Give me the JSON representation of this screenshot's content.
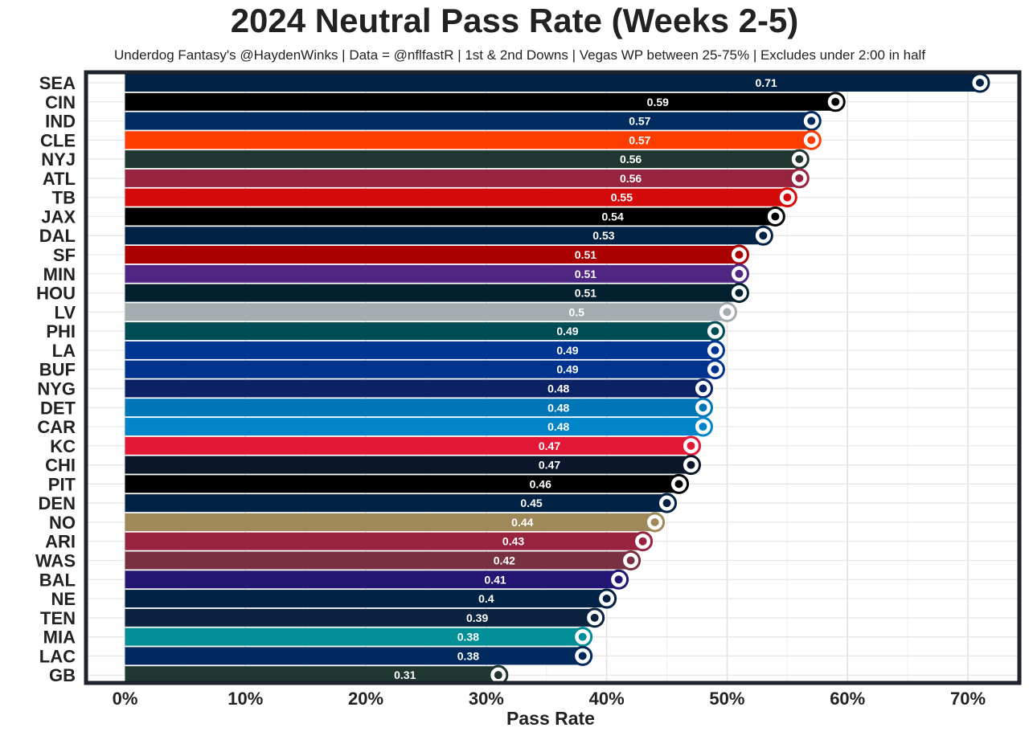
{
  "chart_data": {
    "type": "bar",
    "orientation": "horizontal",
    "title": "2024 Neutral Pass Rate (Weeks 2-5)",
    "subtitle": "Underdog Fantasy's @HaydenWinks | Data = @nflfastR | 1st & 2nd Downs | Vegas WP between 25-75% | Excludes under 2:00 in half",
    "xlabel": "Pass Rate",
    "ylabel": "",
    "xlim": [
      0,
      0.74
    ],
    "x_ticks": [
      0,
      0.1,
      0.2,
      0.3,
      0.4,
      0.5,
      0.6,
      0.7
    ],
    "x_tick_labels": [
      "0%",
      "10%",
      "20%",
      "30%",
      "40%",
      "50%",
      "60%",
      "70%"
    ],
    "grid": true,
    "legend": "none",
    "bars": [
      {
        "team": "SEA",
        "value": 0.71,
        "label": "0.71",
        "color": "#002244",
        "logo": "seahawks-logo"
      },
      {
        "team": "CIN",
        "value": 0.59,
        "label": "0.59",
        "color": "#000000",
        "logo": "bengals-logo"
      },
      {
        "team": "IND",
        "value": 0.57,
        "label": "0.57",
        "color": "#002C5F",
        "logo": "colts-logo"
      },
      {
        "team": "CLE",
        "value": 0.57,
        "label": "0.57",
        "color": "#FF3C00",
        "logo": "browns-logo"
      },
      {
        "team": "NYJ",
        "value": 0.56,
        "label": "0.56",
        "color": "#203731",
        "logo": "jets-logo"
      },
      {
        "team": "ATL",
        "value": 0.56,
        "label": "0.56",
        "color": "#97233F",
        "logo": "falcons-logo"
      },
      {
        "team": "TB",
        "value": 0.55,
        "label": "0.55",
        "color": "#D50A0A",
        "logo": "buccaneers-logo"
      },
      {
        "team": "JAX",
        "value": 0.54,
        "label": "0.54",
        "color": "#000000",
        "logo": "jaguars-logo"
      },
      {
        "team": "DAL",
        "value": 0.53,
        "label": "0.53",
        "color": "#002244",
        "logo": "cowboys-logo"
      },
      {
        "team": "SF",
        "value": 0.51,
        "label": "0.51",
        "color": "#AA0000",
        "logo": "49ers-logo"
      },
      {
        "team": "MIN",
        "value": 0.51,
        "label": "0.51",
        "color": "#4F2683",
        "logo": "vikings-logo"
      },
      {
        "team": "HOU",
        "value": 0.51,
        "label": "0.51",
        "color": "#03202F",
        "logo": "texans-logo"
      },
      {
        "team": "LV",
        "value": 0.5,
        "label": "0.5",
        "color": "#A5ACAF",
        "logo": "raiders-logo"
      },
      {
        "team": "PHI",
        "value": 0.49,
        "label": "0.49",
        "color": "#004C54",
        "logo": "eagles-logo"
      },
      {
        "team": "LA",
        "value": 0.49,
        "label": "0.49",
        "color": "#003594",
        "logo": "rams-logo"
      },
      {
        "team": "BUF",
        "value": 0.49,
        "label": "0.49",
        "color": "#00338D",
        "logo": "bills-logo"
      },
      {
        "team": "NYG",
        "value": 0.48,
        "label": "0.48",
        "color": "#0B2265",
        "logo": "giants-logo"
      },
      {
        "team": "DET",
        "value": 0.48,
        "label": "0.48",
        "color": "#0076B6",
        "logo": "lions-logo"
      },
      {
        "team": "CAR",
        "value": 0.48,
        "label": "0.48",
        "color": "#0085CA",
        "logo": "panthers-logo"
      },
      {
        "team": "KC",
        "value": 0.47,
        "label": "0.47",
        "color": "#E31837",
        "logo": "chiefs-logo"
      },
      {
        "team": "CHI",
        "value": 0.47,
        "label": "0.47",
        "color": "#0B162A",
        "logo": "bears-logo"
      },
      {
        "team": "PIT",
        "value": 0.46,
        "label": "0.46",
        "color": "#000000",
        "logo": "steelers-logo"
      },
      {
        "team": "DEN",
        "value": 0.45,
        "label": "0.45",
        "color": "#002244",
        "logo": "broncos-logo"
      },
      {
        "team": "NO",
        "value": 0.44,
        "label": "0.44",
        "color": "#9F8958",
        "logo": "saints-logo"
      },
      {
        "team": "ARI",
        "value": 0.43,
        "label": "0.43",
        "color": "#97233F",
        "logo": "cardinals-logo"
      },
      {
        "team": "WAS",
        "value": 0.42,
        "label": "0.42",
        "color": "#773141",
        "logo": "commanders-logo"
      },
      {
        "team": "BAL",
        "value": 0.41,
        "label": "0.41",
        "color": "#241773",
        "logo": "ravens-logo"
      },
      {
        "team": "NE",
        "value": 0.4,
        "label": "0.4",
        "color": "#002244",
        "logo": "patriots-logo"
      },
      {
        "team": "TEN",
        "value": 0.39,
        "label": "0.39",
        "color": "#0C2340",
        "logo": "titans-logo"
      },
      {
        "team": "MIA",
        "value": 0.38,
        "label": "0.38",
        "color": "#008E97",
        "logo": "dolphins-logo"
      },
      {
        "team": "LAC",
        "value": 0.38,
        "label": "0.38",
        "color": "#002A5E",
        "logo": "chargers-logo"
      },
      {
        "team": "GB",
        "value": 0.31,
        "label": "0.31",
        "color": "#203731",
        "logo": "packers-logo"
      }
    ]
  }
}
